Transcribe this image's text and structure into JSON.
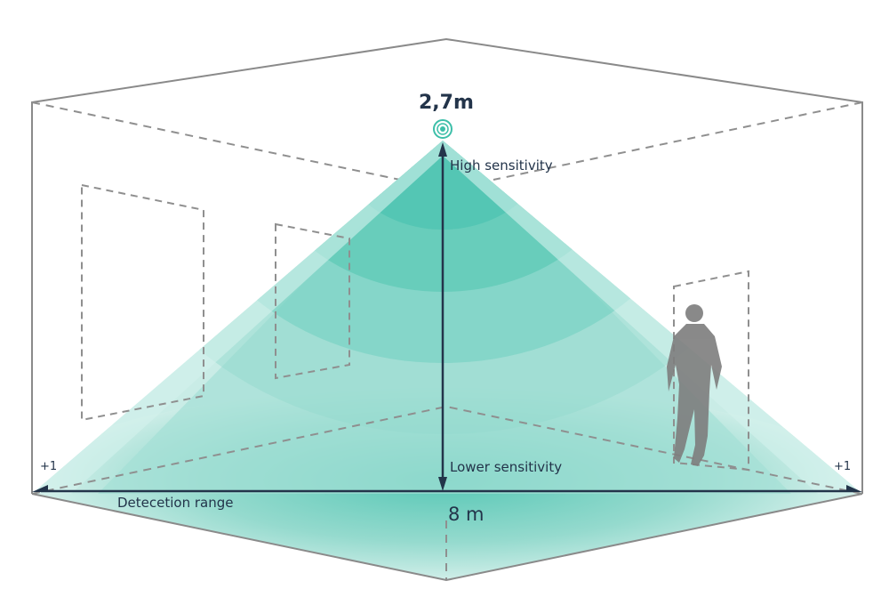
{
  "labels": {
    "height": "2,7m",
    "high": "High sensitivity",
    "low": "Lower sensitivity",
    "range_label": "Detecetion range",
    "range_value": "8 m",
    "left_plus": "+1",
    "right_plus": "+1"
  },
  "colors": {
    "cone_light": "#c6ebe4",
    "cone_mid": "#7fd3c4",
    "cone_dark": "#4bc3b0",
    "arrow": "#23344a",
    "room_line": "#8a8a8a",
    "person": "#7d7d7d"
  },
  "icons": {
    "sensor": "sensor-target-icon",
    "person": "person-silhouette-icon"
  }
}
